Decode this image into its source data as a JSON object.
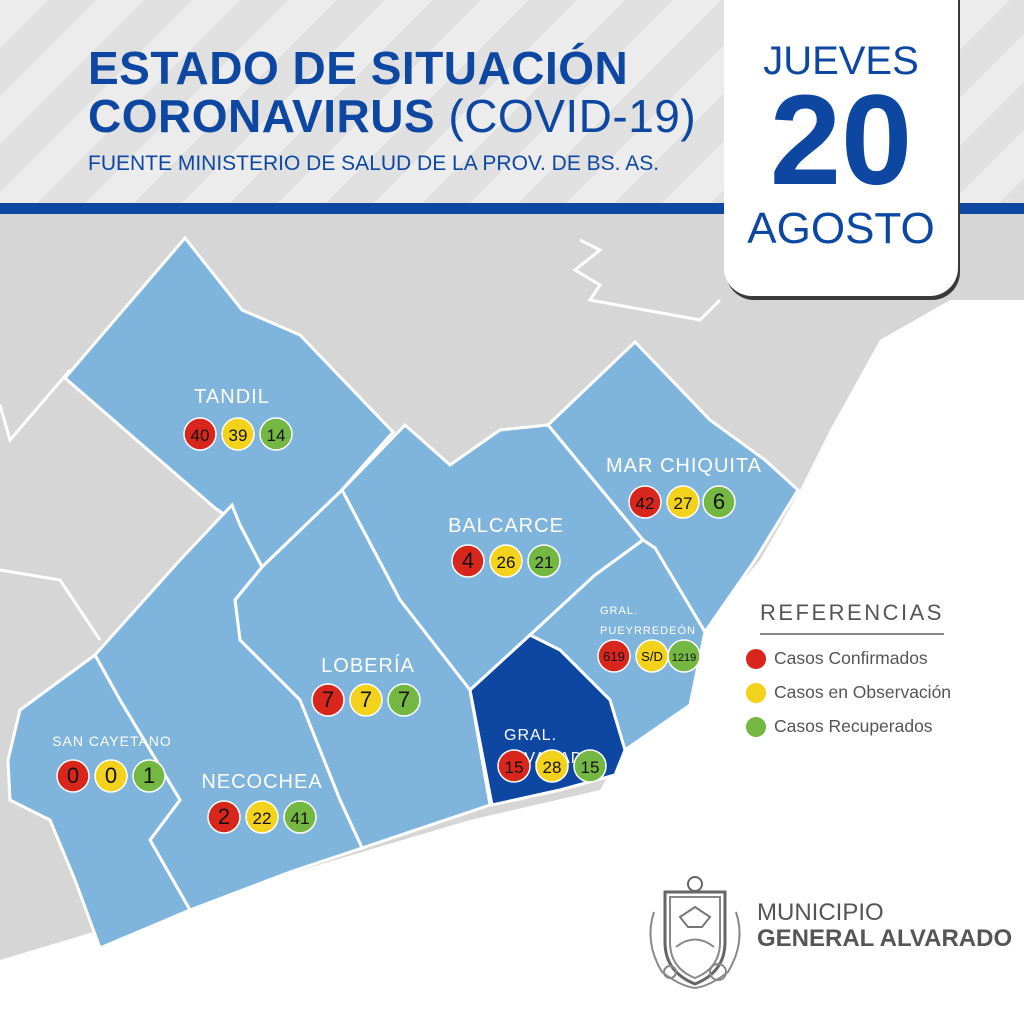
{
  "header": {
    "title_line1": "ESTADO DE SITUACIÓN",
    "title_line2_bold": "CORONAVIRUS",
    "title_line2_light": "(COVID-19)",
    "source": "FUENTE MINISTERIO DE SALUD DE LA PROV. DE BS. AS."
  },
  "date": {
    "weekday": "JUEVES",
    "day": "20",
    "month": "AGOSTO"
  },
  "colors": {
    "confirmed": "#d9261c",
    "observation": "#f2d21b",
    "recovered": "#74b743",
    "district_fill": "#7fb5dc",
    "highlight_fill": "#0d47a1",
    "brand_blue": "#0d47a1"
  },
  "districts": [
    {
      "name": "TANDIL",
      "confirmed": "40",
      "observation": "39",
      "recovered": "14"
    },
    {
      "name": "MAR CHIQUITA",
      "confirmed": "42",
      "observation": "27",
      "recovered": "6"
    },
    {
      "name": "BALCARCE",
      "confirmed": "4",
      "observation": "26",
      "recovered": "21"
    },
    {
      "name_line1": "GRAL.",
      "name_line2": "PUEYRREDEÓN",
      "confirmed": "619",
      "observation": "S/D",
      "recovered": "1219"
    },
    {
      "name": "LOBERÍA",
      "confirmed": "7",
      "observation": "7",
      "recovered": "7"
    },
    {
      "name_line1": "GRAL.",
      "name_line2": "ALVARADO",
      "confirmed": "15",
      "observation": "28",
      "recovered": "15"
    },
    {
      "name": "SAN CAYETANO",
      "confirmed": "0",
      "observation": "0",
      "recovered": "1"
    },
    {
      "name": "NECOCHEA",
      "confirmed": "2",
      "observation": "22",
      "recovered": "41"
    }
  ],
  "legend": {
    "title": "REFERENCIAS",
    "items": [
      {
        "label": "Casos Confirmados",
        "color": "#d9261c"
      },
      {
        "label": "Casos en Observación",
        "color": "#f2d21b"
      },
      {
        "label": "Casos Recuperados",
        "color": "#74b743"
      }
    ]
  },
  "logo": {
    "line1": "MUNICIPIO",
    "line2": "GENERAL ALVARADO",
    "emblem": "municipal-coat-of-arms-icon"
  }
}
